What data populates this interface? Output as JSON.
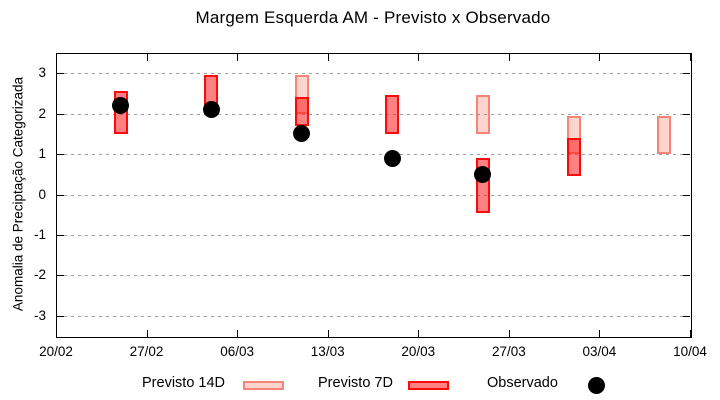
{
  "title": "Margem Esquerda AM - Previsto x Observado",
  "colors": {
    "previsto_14d_fill": "rgba(250,85,60,0.25)",
    "previsto_14d_border": "rgba(242,100,85,0.7)",
    "previsto_7d_fill": "rgba(255,25,25,0.55)",
    "previsto_7d_border": "rgba(250,5,5,0.95)",
    "observado": "#000000",
    "grid": "#9e9e9e",
    "axis": "#000000"
  },
  "chart_data": {
    "type": "bar",
    "subtype": "range-bars-with-scatter-overlay",
    "title": "Margem Esquerda AM - Previsto x Observado",
    "xlabel": "",
    "ylabel": "Anomalia de Preciptação Categorizada",
    "ylim": [
      -3.5,
      3.5
    ],
    "yticks": [
      3,
      2,
      1,
      0,
      -1,
      -2,
      -3
    ],
    "grid": "horizontal-dashed",
    "legend_position": "bottom",
    "x_axis_days": [
      0,
      49
    ],
    "xticks": [
      {
        "day": 0,
        "label": "20/02"
      },
      {
        "day": 7,
        "label": "27/02"
      },
      {
        "day": 14,
        "label": "06/03"
      },
      {
        "day": 21,
        "label": "13/03"
      },
      {
        "day": 28,
        "label": "20/03"
      },
      {
        "day": 35,
        "label": "27/03"
      },
      {
        "day": 42,
        "label": "03/04"
      },
      {
        "day": 49,
        "label": "10/04"
      }
    ],
    "series": [
      {
        "name": "Previsto 14D",
        "kind": "range",
        "points": [
          {
            "day": 19,
            "low": 2.0,
            "high": 2.95
          },
          {
            "day": 33,
            "low": 1.5,
            "high": 2.45
          },
          {
            "day": 40,
            "low": 1.0,
            "high": 1.95
          },
          {
            "day": 47,
            "low": 1.0,
            "high": 1.95
          }
        ]
      },
      {
        "name": "Previsto 7D",
        "kind": "range",
        "points": [
          {
            "day": 5,
            "low": 1.5,
            "high": 2.55
          },
          {
            "day": 12,
            "low": 2.0,
            "high": 2.95
          },
          {
            "day": 19,
            "low": 1.7,
            "high": 2.4
          },
          {
            "day": 26,
            "low": 1.5,
            "high": 2.45
          },
          {
            "day": 33,
            "low": -0.45,
            "high": 0.9
          },
          {
            "day": 40,
            "low": 0.45,
            "high": 1.4
          }
        ]
      },
      {
        "name": "Observado",
        "kind": "scatter",
        "points": [
          {
            "day": 5,
            "value": 2.2
          },
          {
            "day": 12,
            "value": 2.1
          },
          {
            "day": 19,
            "value": 1.5
          },
          {
            "day": 26,
            "value": 0.9
          },
          {
            "day": 33,
            "value": 0.5
          }
        ]
      }
    ]
  },
  "legend": {
    "previsto_14d": "Previsto 14D",
    "previsto_7d": "Previsto 7D",
    "observado": "Observado"
  }
}
